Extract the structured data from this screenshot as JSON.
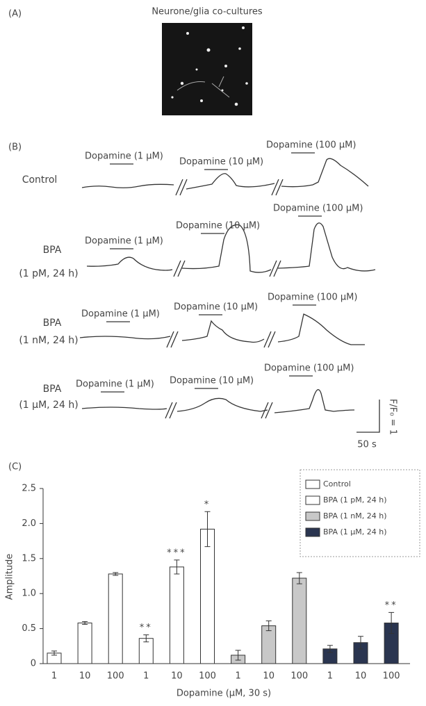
{
  "panel_a": {
    "label": "(A)",
    "title": "Neurone/glia co-cultures"
  },
  "panel_b": {
    "label": "(B)",
    "rows": [
      {
        "name": [
          "Control"
        ],
        "stimuli": [
          "Dopamine (1 μM)",
          "Dopamine (10 μM)",
          "Dopamine (100 μM)"
        ]
      },
      {
        "name": [
          "BPA",
          "(1 pM, 24 h)"
        ],
        "stimuli": [
          "Dopamine (1 μM)",
          "Dopamine (10 μM)",
          "Dopamine (100 μM)"
        ]
      },
      {
        "name": [
          "BPA",
          "(1 nM, 24 h)"
        ],
        "stimuli": [
          "Dopamine (1 μM)",
          "Dopamine (10 μM)",
          "Dopamine (100 μM)"
        ]
      },
      {
        "name": [
          "BPA",
          "(1 μM, 24 h)"
        ],
        "stimuli": [
          "Dopamine (1 μM)",
          "Dopamine (10 μM)",
          "Dopamine (100 μM)"
        ]
      }
    ],
    "scale_y": "F/F₀ = 1",
    "scale_x": "50 s"
  },
  "chart_data": {
    "type": "bar",
    "label": "(C)",
    "y_label": "Amplitude",
    "x_label": "Dopamine (μM, 30 s)",
    "categories": [
      "1",
      "10",
      "100"
    ],
    "series": [
      {
        "name": "Control",
        "color": "#ffffff",
        "values": [
          0.15,
          0.58,
          1.28
        ],
        "errors": [
          0.03,
          0.02,
          0.02
        ],
        "significance": [
          null,
          null,
          null
        ]
      },
      {
        "name": "BPA (1 pM, 24 h)",
        "color": "#ffffff",
        "values": [
          0.36,
          1.38,
          1.92
        ],
        "errors": [
          0.05,
          0.1,
          0.25
        ],
        "significance": [
          "**",
          "***",
          "*"
        ]
      },
      {
        "name": "BPA (1 nM, 24 h)",
        "color": "#c8c8c8",
        "values": [
          0.12,
          0.54,
          1.22
        ],
        "errors": [
          0.07,
          0.07,
          0.08
        ],
        "significance": [
          null,
          null,
          null
        ]
      },
      {
        "name": "BPA (1 μM, 24 h)",
        "color": "#2a3550",
        "values": [
          0.21,
          0.3,
          0.58
        ],
        "errors": [
          0.05,
          0.09,
          0.15
        ],
        "significance": [
          null,
          null,
          "**"
        ]
      }
    ],
    "ylim": [
      0,
      2.5
    ],
    "yticks": [
      0,
      0.5,
      {
        "value": 1,
        "label": "1.0"
      },
      1.5,
      {
        "value": 2,
        "label": "2.0"
      },
      2.5
    ]
  }
}
